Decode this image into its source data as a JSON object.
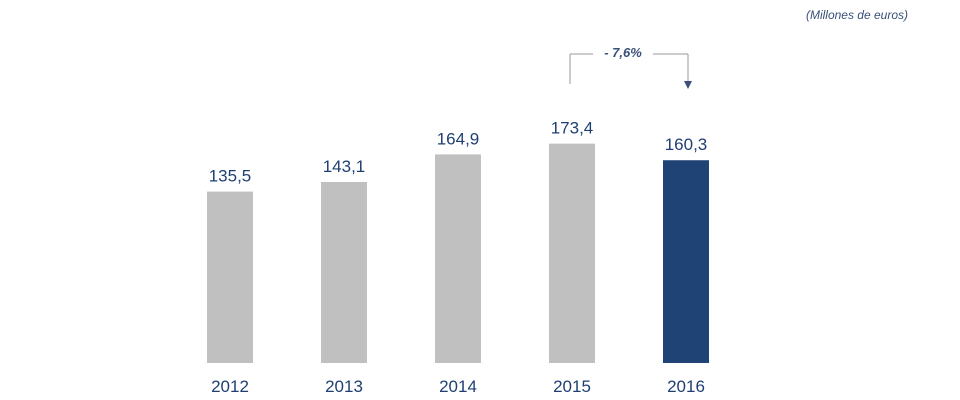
{
  "unit_note": "(Millones de euros)",
  "annotation": {
    "label": "- 7,6%"
  },
  "colors": {
    "default_bar": "#c0c0c0",
    "highlight_bar": "#1f4374",
    "label_text": "#1f3f72",
    "axis_text": "#1f3f72",
    "annotation_line": "#9a9a9a",
    "annotation_text": "#3a4f7a"
  },
  "chart_data": {
    "type": "bar",
    "categories": [
      "2012",
      "2013",
      "2014",
      "2015",
      "2016"
    ],
    "values": [
      135.5,
      143.1,
      164.9,
      173.4,
      160.3
    ],
    "value_labels": [
      "135,5",
      "143,1",
      "164,9",
      "173,4",
      "160,3"
    ],
    "highlight_index": 4,
    "title": "",
    "xlabel": "",
    "ylabel": "",
    "grid": false,
    "legend": "none"
  }
}
